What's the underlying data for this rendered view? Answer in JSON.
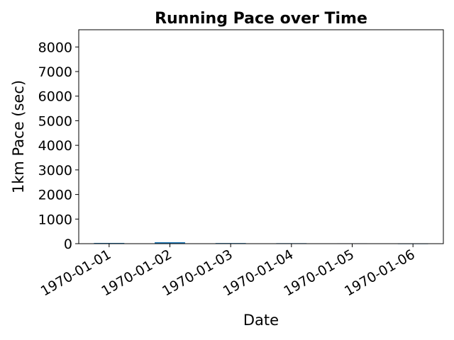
{
  "chart_data": {
    "type": "bar",
    "title": "Running Pace over Time",
    "xlabel": "Date",
    "ylabel": "1km Pace (sec)",
    "categories": [
      "1970-01-01",
      "1970-01-02",
      "1970-01-03",
      "1970-01-04",
      "1970-01-05",
      "1970-01-06"
    ],
    "values": [
      30,
      60,
      25,
      20,
      15,
      10
    ],
    "ylim": [
      0,
      8700
    ],
    "yticks": [
      0,
      1000,
      2000,
      3000,
      4000,
      5000,
      6000,
      7000,
      8000
    ],
    "bar_color": "#1f77b4",
    "grid": false,
    "legend": "none"
  }
}
